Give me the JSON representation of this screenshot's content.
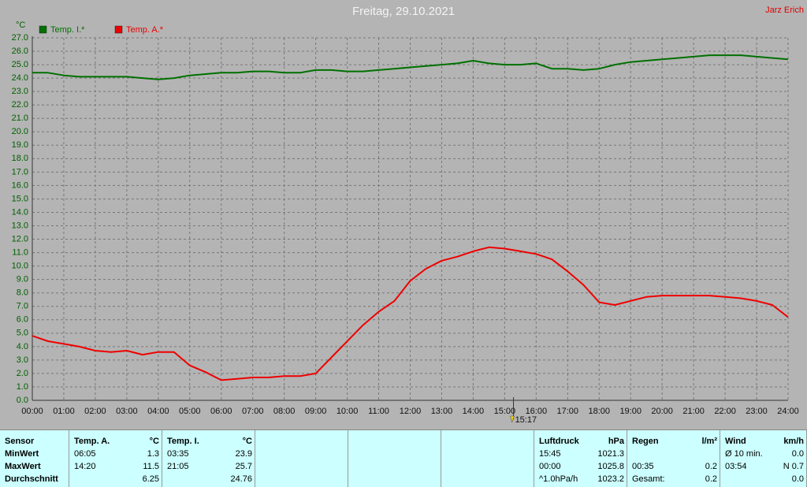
{
  "chart_data": {
    "type": "line",
    "title": "Freitag, 29.10.2021",
    "author": "Jarz Erich",
    "y_unit": "°C",
    "x": [
      0,
      0.5,
      1,
      1.5,
      2,
      2.5,
      3,
      3.5,
      4,
      4.5,
      5,
      5.5,
      6,
      6.5,
      7,
      7.5,
      8,
      8.5,
      9,
      9.5,
      10,
      10.5,
      11,
      11.5,
      12,
      12.5,
      13,
      13.5,
      14,
      14.5,
      15,
      15.5,
      16,
      16.5,
      17,
      17.5,
      18,
      18.5,
      19,
      19.5,
      20,
      20.5,
      21,
      21.5,
      22,
      22.5,
      23,
      23.5,
      24
    ],
    "series": [
      {
        "name": "Temp. I.*",
        "color": "#007000",
        "values": [
          24.4,
          24.4,
          24.2,
          24.1,
          24.1,
          24.1,
          24.1,
          24.0,
          23.9,
          24.0,
          24.2,
          24.3,
          24.4,
          24.4,
          24.5,
          24.5,
          24.4,
          24.4,
          24.6,
          24.6,
          24.5,
          24.5,
          24.6,
          24.7,
          24.8,
          24.9,
          25.0,
          25.1,
          25.3,
          25.1,
          25.0,
          25.0,
          25.1,
          24.7,
          24.7,
          24.6,
          24.7,
          25.0,
          25.2,
          25.3,
          25.4,
          25.5,
          25.6,
          25.7,
          25.7,
          25.7,
          25.6,
          25.5,
          25.4
        ]
      },
      {
        "name": "Temp. A.*",
        "color": "#ee0000",
        "values": [
          4.8,
          4.4,
          4.2,
          4.0,
          3.7,
          3.6,
          3.7,
          3.4,
          3.6,
          3.6,
          2.6,
          2.1,
          1.5,
          1.6,
          1.7,
          1.7,
          1.8,
          1.8,
          2.0,
          3.2,
          4.4,
          5.6,
          6.6,
          7.4,
          8.9,
          9.8,
          10.4,
          10.7,
          11.1,
          11.4,
          11.3,
          11.1,
          10.9,
          10.5,
          9.6,
          8.6,
          7.3,
          7.1,
          7.4,
          7.7,
          7.8,
          7.8,
          7.8,
          7.8,
          7.7,
          7.6,
          7.4,
          7.1,
          6.2
        ]
      }
    ],
    "xlim": [
      0,
      24
    ],
    "xticks": [
      {
        "value": 0,
        "label": "00:00"
      },
      {
        "value": 1,
        "label": "01:00"
      },
      {
        "value": 2,
        "label": "02:00"
      },
      {
        "value": 3,
        "label": "03:00"
      },
      {
        "value": 4,
        "label": "04:00"
      },
      {
        "value": 5,
        "label": "05:00"
      },
      {
        "value": 6,
        "label": "06:00"
      },
      {
        "value": 7,
        "label": "07:00"
      },
      {
        "value": 8,
        "label": "08:00"
      },
      {
        "value": 9,
        "label": "09:00"
      },
      {
        "value": 10,
        "label": "10:00"
      },
      {
        "value": 11,
        "label": "11:00"
      },
      {
        "value": 12,
        "label": "12:00"
      },
      {
        "value": 13,
        "label": "13:00"
      },
      {
        "value": 14,
        "label": "14:00"
      },
      {
        "value": 15,
        "label": "15:00"
      },
      {
        "value": 16,
        "label": "16:00"
      },
      {
        "value": 17,
        "label": "17:00"
      },
      {
        "value": 18,
        "label": "18:00"
      },
      {
        "value": 19,
        "label": "19:00"
      },
      {
        "value": 20,
        "label": "20:00"
      },
      {
        "value": 21,
        "label": "21:00"
      },
      {
        "value": 22,
        "label": "22:00"
      },
      {
        "value": 23,
        "label": "23:00"
      },
      {
        "value": 24,
        "label": "24:00"
      }
    ],
    "ylim": [
      0,
      27
    ],
    "yticks": [
      {
        "value": 0,
        "label": "0.0"
      },
      {
        "value": 1,
        "label": "1.0"
      },
      {
        "value": 2,
        "label": "2.0"
      },
      {
        "value": 3,
        "label": "3.0"
      },
      {
        "value": 4,
        "label": "4.0"
      },
      {
        "value": 5,
        "label": "5.0"
      },
      {
        "value": 6,
        "label": "6.0"
      },
      {
        "value": 7,
        "label": "7.0"
      },
      {
        "value": 8,
        "label": "8.0"
      },
      {
        "value": 9,
        "label": "9.0"
      },
      {
        "value": 10,
        "label": "10.0"
      },
      {
        "value": 11,
        "label": "11.0"
      },
      {
        "value": 12,
        "label": "12.0"
      },
      {
        "value": 13,
        "label": "13.0"
      },
      {
        "value": 14,
        "label": "14.0"
      },
      {
        "value": 15,
        "label": "15.0"
      },
      {
        "value": 16,
        "label": "16.0"
      },
      {
        "value": 17,
        "label": "17.0"
      },
      {
        "value": 18,
        "label": "18.0"
      },
      {
        "value": 19,
        "label": "19.0"
      },
      {
        "value": 20,
        "label": "20.0"
      },
      {
        "value": 21,
        "label": "21.0"
      },
      {
        "value": 22,
        "label": "22.0"
      },
      {
        "value": 23,
        "label": "23.0"
      },
      {
        "value": 24,
        "label": "24.0"
      },
      {
        "value": 25,
        "label": "25.0"
      },
      {
        "value": 26,
        "label": "26.0"
      },
      {
        "value": 27,
        "label": "27.0"
      }
    ],
    "grid": true,
    "marker": {
      "value": 15.28,
      "label": "15:17"
    }
  },
  "stats_table": {
    "panels": [
      {
        "header": [
          "Sensor"
        ],
        "rows": [
          [
            "MinWert"
          ],
          [
            "MaxWert"
          ],
          [
            "Durchschnitt"
          ]
        ]
      },
      {
        "header": [
          "Temp. A.",
          "°C"
        ],
        "rows": [
          [
            "06:05",
            "1.3"
          ],
          [
            "14:20",
            "11.5"
          ],
          [
            "6.25"
          ]
        ]
      },
      {
        "header": [
          "Temp. I.",
          "°C"
        ],
        "rows": [
          [
            "03:35",
            "23.9"
          ],
          [
            "21:05",
            "25.7"
          ],
          [
            "24.76"
          ]
        ]
      },
      {
        "header": [
          "Luftdruck",
          "hPa"
        ],
        "rows": [
          [
            "15:45",
            "1021.3"
          ],
          [
            "00:00",
            "1025.8"
          ],
          [
            "^1.0hPa/h",
            "1023.2"
          ]
        ]
      },
      {
        "header": [
          "Regen",
          "l/m²"
        ],
        "rows": [
          [],
          [
            "00:35",
            "0.2"
          ],
          [
            "Gesamt:",
            "0.2"
          ]
        ]
      },
      {
        "header": [
          "Wind",
          "km/h"
        ],
        "rows": [
          [
            "Ø 10 min.",
            "0.0"
          ],
          [
            "03:54",
            "N 0.7"
          ],
          [
            "0.0"
          ]
        ]
      }
    ]
  }
}
